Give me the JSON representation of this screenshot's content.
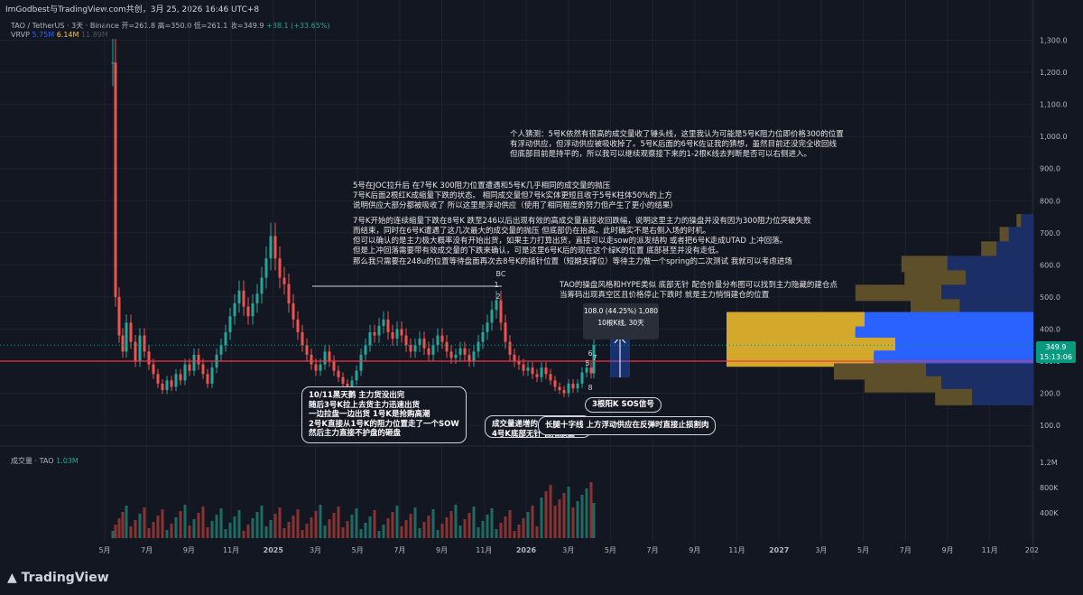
{
  "header": {
    "text": "ImGodbest与TradingView.com共创，3月 25, 2026 16:46 UTC+8"
  },
  "symbol": {
    "prefix": "TAO / TetherUS · 3天 · Binance  开=261.8  高=350.0  低=261.1  收=349.9 ",
    "change": "+88.1 (+33.65%)"
  },
  "vrvp": {
    "label": "VRVP",
    "v1": "5.75M",
    "v2": "6.14M",
    "v3": "11.89M"
  },
  "volume": {
    "label": "成交量 · TAO",
    "value": "1.03M"
  },
  "price_tag": {
    "price": "349.9",
    "time": "15:13:06"
  },
  "measure": {
    "line1": "108.0 (44.25%) 1,080",
    "line2": "10根K线, 30天"
  },
  "notes": {
    "note1": "个人猜测：5号K依然有很高的成交量收了锤头线，这里我认为可能是5号K阻力位即价格300的位置\n有浮动供应，但浮动供应被吸收掉了。5号K后面的6号K佐证我的猜想，虽然目前还没完全收回线\n但底部目前是持平的，所以我可以继续观察接下来的1-2根K线去判断是否可以右侧进入。",
    "note2": "5号在JOC拉升后 在7号K 300阻力位置遭遇和5号K几乎相同的成交量的抛压\n7号K后面2根红K成缩量下跌的状态。 相同成交量但7号k实体更短且收于5号K柱体50%的上方\n说明供应大部分都被吸收了 所以这里是浮动供应（使用了相同程度的努力但产生了更小的结果）",
    "note3": "7号K开始的连续缩量下跌在8号K 跌至246以后出现有效的高成交量直接收回跌幅，说明这里主力的操盘并没有因为300阻力位突破失败\n而结束，同时在6号K遭遇了这几次最大的成交量的抛压 但底部仍在抬高。此时确实不是右侧入场的时机。\n但可以确认的是主力极大概率没有开始出货，如果主力打算出货，直接可以走sow的派发结构 或者把6号K走成UTAD 上冲回落。\n但是上冲回落需要带有效成交量的下跌来确认，可是这里6号K后的现在这个绿K的位置 底部甚至并没有走低。",
    "note4": "那么我只需要在248u的位置等待盘面再次去8号K的插针位置（短期支撑位）等待主力做一个spring的二次测试 我就可以考虑进场",
    "note5": "TAO的操盘风格和HYPE类似 底部无针 配合价量分布图可以找到主力隐藏的建仓点\n当筹码出现真空区且价格停止下跌时 就是主力悄悄建仓的位置"
  },
  "callouts": {
    "c1": "10/11黑天鹅 主力货没出完\n随后3号K拉上去货主力迅速出货\n一边拉盘一边出货 1号K是抢购高潮\n2号K直接从1号K的阻力位置走了一个SOW\n然后主力直接不护盘的砸盘",
    "c2": "成交量递增的 阴跌\n4号K底部无针 假阳放量",
    "c3": "长腿十字线 上方浮动供应在反弹时直接止损割肉",
    "c4": "3根阳K SOS信号"
  },
  "footer": {
    "brand": "TradingView"
  },
  "chart_data": {
    "type": "candlestick",
    "symbol": "TAO / TetherUS",
    "interval": "3天",
    "exchange": "Binance",
    "last": {
      "open": 261.8,
      "high": 350.0,
      "low": 261.1,
      "close": 349.9,
      "change": 88.1,
      "change_pct": 33.65
    },
    "y_axis": {
      "ticks": [
        "1,300.0",
        "1,200.0",
        "1,100.0",
        "1,000.0",
        "900.0",
        "800.0",
        "700.0",
        "600.0",
        "500.0",
        "400.0",
        "300.0",
        "200.0",
        "100.0"
      ],
      "range": [
        50,
        1340
      ]
    },
    "x_axis": {
      "ticks": [
        "5月",
        "7月",
        "9月",
        "11月",
        "2025",
        "3月",
        "5月",
        "7月",
        "9月",
        "11月",
        "2026",
        "3月",
        "5月",
        "7月",
        "9月",
        "11月",
        "2027",
        "3月",
        "5月",
        "7月",
        "9月",
        "11月",
        "202"
      ]
    },
    "volume_axis": {
      "ticks": [
        "1.2M",
        "800K",
        "400K"
      ]
    },
    "annotations": {
      "markers": [
        "BC",
        "1",
        "2",
        "5",
        "6",
        "7",
        "8"
      ],
      "horizontal_lines": [
        {
          "price": 300,
          "color": "#f23645"
        },
        {
          "price": 545,
          "color": "#d1d4dc"
        }
      ]
    },
    "volume_profile": {
      "legend": [
        "5.75M",
        "6.14M",
        "11.89M"
      ],
      "rows": [
        {
          "price": 730,
          "up": 0.015,
          "down": 0.04
        },
        {
          "price": 690,
          "up": 0.03,
          "down": 0.08
        },
        {
          "price": 645,
          "up": 0.05,
          "down": 0.12
        },
        {
          "price": 600,
          "up": 0.15,
          "down": 0.28
        },
        {
          "price": 555,
          "up": 0.2,
          "down": 0.22
        },
        {
          "price": 510,
          "up": 0.28,
          "down": 0.3
        },
        {
          "price": 465,
          "up": 0.16,
          "down": 0.24
        },
        {
          "price": 425,
          "up": 0.45,
          "down": 0.55
        },
        {
          "price": 380,
          "up": 0.42,
          "down": 0.58
        },
        {
          "price": 345,
          "up": 0.55,
          "down": 0.45
        },
        {
          "price": 305,
          "up": 0.48,
          "down": 0.52
        },
        {
          "price": 265,
          "up": 0.3,
          "down": 0.35
        },
        {
          "price": 225,
          "up": 0.25,
          "down": 0.3
        },
        {
          "price": 185,
          "up": 0.12,
          "down": 0.2
        }
      ]
    }
  }
}
